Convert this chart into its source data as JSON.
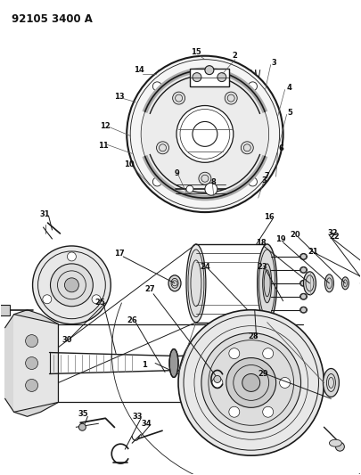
{
  "title": "92105 3400 A",
  "bg_color": "#ffffff",
  "fig_width": 4.05,
  "fig_height": 5.33,
  "dpi": 100,
  "line_color": "#1a1a1a",
  "label_color": "#111111",
  "label_fontsize": 6.0
}
